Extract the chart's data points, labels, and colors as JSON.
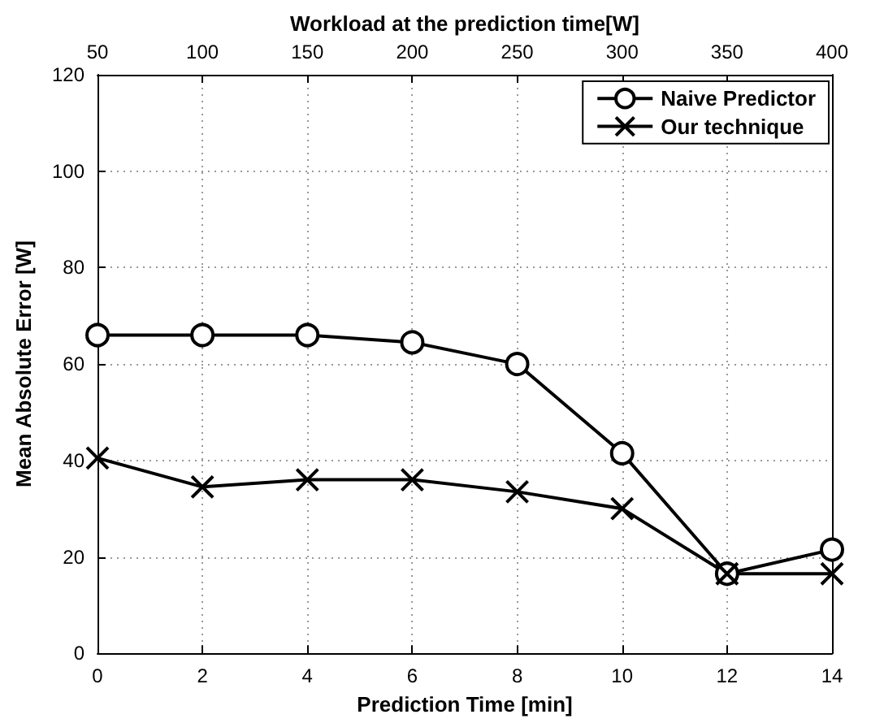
{
  "chart_data": {
    "type": "line",
    "xlabel": "Prediction Time [min]",
    "ylabel": "Mean Absolute Error [W]",
    "x2label": "Workload at the prediction time[W]",
    "x": [
      0,
      2,
      4,
      6,
      8,
      10,
      12,
      14
    ],
    "series": [
      {
        "name": "Naive Predictor",
        "color": "#000000",
        "marker": "circle",
        "values": [
          66,
          66,
          66,
          64.5,
          60,
          41.5,
          16.5,
          21.5
        ]
      },
      {
        "name": "Our technique",
        "color": "#000000",
        "marker": "cross",
        "values": [
          40.5,
          34.5,
          36,
          36,
          33.5,
          30,
          16.5,
          16.5
        ]
      }
    ],
    "xlim": [
      0,
      14
    ],
    "xticks": [
      0,
      2,
      4,
      6,
      8,
      10,
      12,
      14
    ],
    "x2lim": [
      50,
      400
    ],
    "x2ticks": [
      50,
      100,
      150,
      200,
      250,
      300,
      350,
      400
    ],
    "ylim": [
      0,
      120
    ],
    "yticks": [
      0,
      20,
      40,
      60,
      80,
      100,
      120
    ],
    "grid": true,
    "legend": "top right",
    "line_style": "solid"
  }
}
